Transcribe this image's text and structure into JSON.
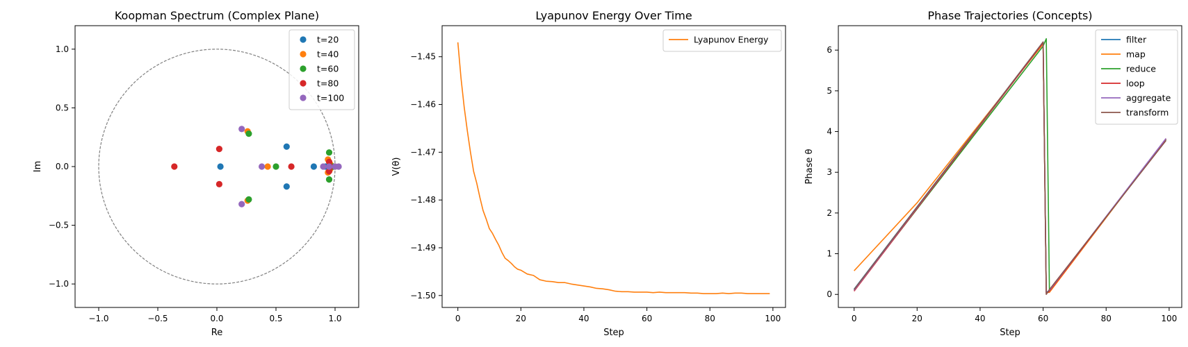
{
  "chart_data": [
    {
      "type": "scatter",
      "title": "Koopman Spectrum (Complex Plane)",
      "xlabel": "Re",
      "ylabel": "Im",
      "xlim": [
        -1.2,
        1.2
      ],
      "ylim": [
        -1.2,
        1.2
      ],
      "xticks": [
        "−1.0",
        "−0.5",
        "0.0",
        "0.5",
        "1.0"
      ],
      "yticks": [
        "−1.0",
        "−0.5",
        "0.0",
        "0.5",
        "1.0"
      ],
      "unit_circle": true,
      "legend": "top-right",
      "series": [
        {
          "name": "t=20",
          "color": "#1f77b4",
          "points": [
            [
              0.03,
              0.0
            ],
            [
              0.59,
              0.17
            ],
            [
              0.59,
              -0.17
            ],
            [
              0.82,
              0.0
            ],
            [
              0.92,
              0.0
            ],
            [
              0.95,
              0.0
            ],
            [
              0.97,
              0.0
            ],
            [
              0.99,
              0.0
            ]
          ]
        },
        {
          "name": "t=40",
          "color": "#ff7f0e",
          "points": [
            [
              0.26,
              0.3
            ],
            [
              0.26,
              -0.29
            ],
            [
              0.43,
              0.0
            ],
            [
              0.94,
              0.06
            ],
            [
              0.94,
              -0.05
            ],
            [
              0.96,
              0.02
            ],
            [
              0.96,
              -0.02
            ],
            [
              1.0,
              0.0
            ]
          ]
        },
        {
          "name": "t=60",
          "color": "#2ca02c",
          "points": [
            [
              0.27,
              0.28
            ],
            [
              0.27,
              -0.28
            ],
            [
              0.5,
              0.0
            ],
            [
              0.95,
              0.12
            ],
            [
              0.95,
              -0.11
            ],
            [
              0.96,
              0.0
            ],
            [
              0.98,
              0.0
            ]
          ]
        },
        {
          "name": "t=80",
          "color": "#d62728",
          "points": [
            [
              -0.36,
              0.0
            ],
            [
              0.02,
              0.15
            ],
            [
              0.02,
              -0.15
            ],
            [
              0.63,
              0.0
            ],
            [
              0.95,
              0.04
            ],
            [
              0.95,
              -0.04
            ],
            [
              0.96,
              0.0
            ]
          ]
        },
        {
          "name": "t=100",
          "color": "#9467bd",
          "points": [
            [
              0.21,
              0.32
            ],
            [
              0.21,
              -0.32
            ],
            [
              0.38,
              0.0
            ],
            [
              0.9,
              0.0
            ],
            [
              0.95,
              0.0
            ],
            [
              1.0,
              0.0
            ],
            [
              1.03,
              0.0
            ]
          ]
        }
      ]
    },
    {
      "type": "line",
      "title": "Lyapunov Energy Over Time",
      "xlabel": "Step",
      "ylabel": "V(θ)",
      "xlim": [
        -5,
        104
      ],
      "ylim": [
        -1.5025,
        -1.4435
      ],
      "xticks": [
        "0",
        "20",
        "40",
        "60",
        "80",
        "100"
      ],
      "yticks": [
        "−1.45",
        "−1.46",
        "−1.47",
        "−1.48",
        "−1.49",
        "−1.50"
      ],
      "legend": "top-right",
      "series": [
        {
          "name": "Lyapunov Energy",
          "color": "#ff7f0e",
          "x": [
            0,
            1,
            2,
            3,
            4,
            5,
            6,
            7,
            8,
            9,
            10,
            11,
            12,
            13,
            14,
            15,
            16,
            17,
            18,
            19,
            20,
            22,
            24,
            26,
            28,
            30,
            32,
            34,
            36,
            38,
            40,
            42,
            44,
            46,
            48,
            50,
            52,
            54,
            56,
            58,
            60,
            62,
            64,
            66,
            68,
            70,
            72,
            74,
            76,
            78,
            80,
            82,
            84,
            86,
            88,
            90,
            92,
            94,
            96,
            98,
            99
          ],
          "y": [
            -1.447,
            -1.4545,
            -1.4605,
            -1.4655,
            -1.47,
            -1.474,
            -1.4765,
            -1.4795,
            -1.4822,
            -1.484,
            -1.486,
            -1.487,
            -1.4883,
            -1.4895,
            -1.491,
            -1.4922,
            -1.4927,
            -1.4933,
            -1.494,
            -1.4945,
            -1.4947,
            -1.4955,
            -1.4958,
            -1.4967,
            -1.497,
            -1.4971,
            -1.4973,
            -1.4973,
            -1.4976,
            -1.4978,
            -1.498,
            -1.4982,
            -1.4985,
            -1.4986,
            -1.4988,
            -1.4991,
            -1.4992,
            -1.4992,
            -1.4993,
            -1.4993,
            -1.4993,
            -1.4994,
            -1.4993,
            -1.4994,
            -1.4994,
            -1.4994,
            -1.4994,
            -1.4995,
            -1.4995,
            -1.4996,
            -1.4996,
            -1.4996,
            -1.4995,
            -1.4996,
            -1.4995,
            -1.4995,
            -1.4996,
            -1.4996,
            -1.4996,
            -1.4996,
            -1.4996
          ]
        }
      ]
    },
    {
      "type": "line",
      "title": "Phase Trajectories (Concepts)",
      "xlabel": "Step",
      "ylabel": "Phase θ",
      "xlim": [
        -5,
        104
      ],
      "ylim": [
        -0.32,
        6.6
      ],
      "xticks": [
        "0",
        "20",
        "40",
        "60",
        "80",
        "100"
      ],
      "yticks": [
        "0",
        "1",
        "2",
        "3",
        "4",
        "5",
        "6"
      ],
      "legend": "top-right",
      "series": [
        {
          "name": "filter",
          "color": "#1f77b4",
          "x": [
            0,
            60,
            61,
            62,
            99
          ],
          "y": [
            0.13,
            6.2,
            0.05,
            0.1,
            3.8
          ]
        },
        {
          "name": "map",
          "color": "#ff7f0e",
          "x": [
            0,
            20,
            60,
            61,
            62,
            99
          ],
          "y": [
            0.58,
            2.25,
            6.15,
            0.05,
            0.05,
            3.82
          ]
        },
        {
          "name": "reduce",
          "color": "#2ca02c",
          "x": [
            0,
            60,
            61,
            62,
            99
          ],
          "y": [
            0.1,
            6.1,
            6.28,
            0.1,
            3.8
          ]
        },
        {
          "name": "loop",
          "color": "#d62728",
          "x": [
            0,
            60,
            61,
            62,
            99
          ],
          "y": [
            0.08,
            6.18,
            0.02,
            0.08,
            3.82
          ]
        },
        {
          "name": "aggregate",
          "color": "#9467bd",
          "x": [
            0,
            60,
            61,
            62,
            99
          ],
          "y": [
            0.1,
            6.2,
            0.03,
            0.1,
            3.83
          ]
        },
        {
          "name": "transform",
          "color": "#8c564b",
          "x": [
            0,
            60,
            61,
            62,
            99
          ],
          "y": [
            0.12,
            6.2,
            0.0,
            0.12,
            3.78
          ]
        }
      ]
    }
  ]
}
